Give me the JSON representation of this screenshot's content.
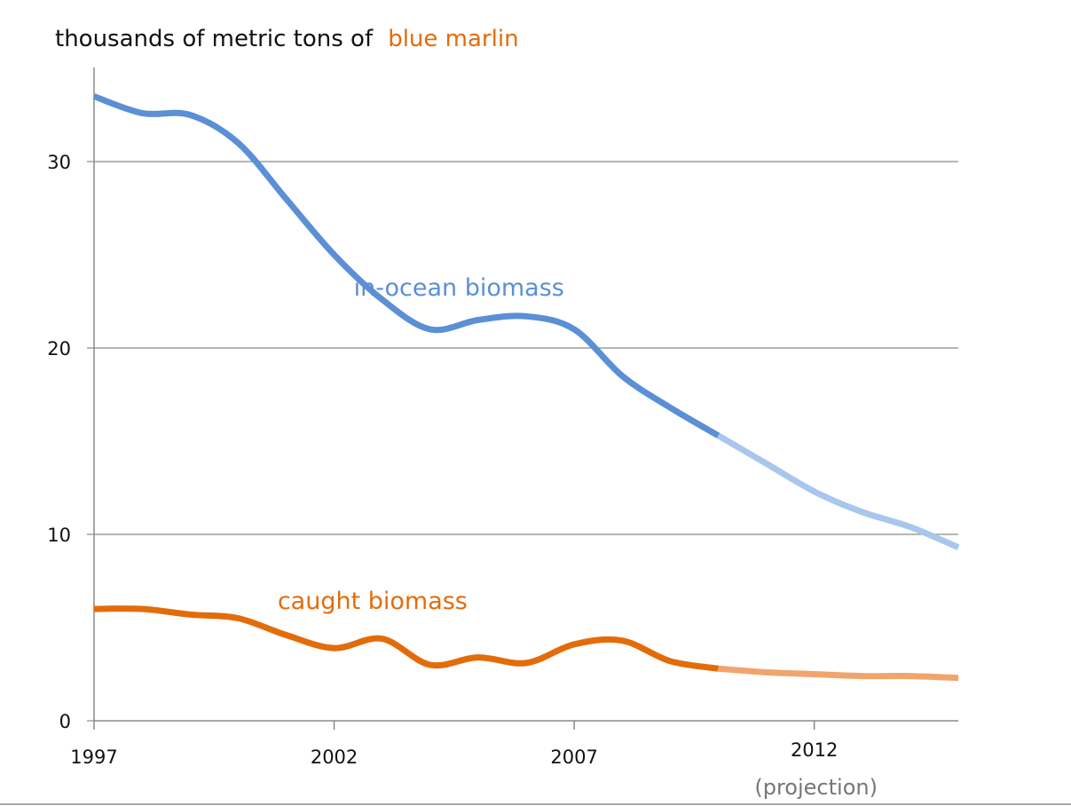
{
  "chart_data": {
    "type": "line",
    "title_prefix": "thousands of metric tons of",
    "title_highlight": "blue marlin",
    "xlabel": "",
    "ylabel": "",
    "xlim": [
      1997,
      2015
    ],
    "ylim": [
      0,
      35
    ],
    "grid": true,
    "y_ticks": [
      {
        "value": 0,
        "label": "0"
      },
      {
        "value": 10,
        "label": "10"
      },
      {
        "value": 20,
        "label": "20"
      },
      {
        "value": 30,
        "label": "30"
      }
    ],
    "x_ticks": [
      {
        "value": 1997,
        "label": "1997",
        "projection": false
      },
      {
        "value": 2002,
        "label": "2002",
        "projection": false
      },
      {
        "value": 2007,
        "label": "2007",
        "projection": false
      },
      {
        "value": 2012,
        "label": "2012",
        "projection": true
      }
    ],
    "projection_note": "(projection)",
    "projection_start": 2010,
    "series": [
      {
        "name": "in-ocean biomass",
        "color": "#5b8fd6",
        "projection_color": "#a9c6ec",
        "label_anchor": {
          "x": 2004.6,
          "y": 22.8
        },
        "points": [
          [
            1997,
            33.5
          ],
          [
            1998,
            32.6
          ],
          [
            1999,
            32.5
          ],
          [
            2000,
            31.0
          ],
          [
            2001,
            28.0
          ],
          [
            2002,
            25.0
          ],
          [
            2003,
            22.6
          ],
          [
            2004,
            21.0
          ],
          [
            2005,
            21.5
          ],
          [
            2006,
            21.7
          ],
          [
            2007,
            21.0
          ],
          [
            2008,
            18.5
          ],
          [
            2009,
            16.8
          ],
          [
            2010,
            15.3
          ],
          [
            2011,
            13.8
          ],
          [
            2012,
            12.3
          ],
          [
            2013,
            11.2
          ],
          [
            2014,
            10.4
          ],
          [
            2015,
            9.3
          ]
        ]
      },
      {
        "name": "caught biomass",
        "color": "#e36c0a",
        "projection_color": "#f2a46e",
        "label_anchor": {
          "x": 2002.8,
          "y": 6.0
        },
        "points": [
          [
            1997,
            6.0
          ],
          [
            1998,
            6.0
          ],
          [
            1999,
            5.7
          ],
          [
            2000,
            5.5
          ],
          [
            2001,
            4.6
          ],
          [
            2002,
            3.9
          ],
          [
            2003,
            4.4
          ],
          [
            2004,
            3.0
          ],
          [
            2005,
            3.4
          ],
          [
            2006,
            3.1
          ],
          [
            2007,
            4.1
          ],
          [
            2008,
            4.3
          ],
          [
            2009,
            3.2
          ],
          [
            2010,
            2.8
          ],
          [
            2011,
            2.6
          ],
          [
            2012,
            2.5
          ],
          [
            2013,
            2.4
          ],
          [
            2014,
            2.4
          ],
          [
            2015,
            2.3
          ]
        ]
      }
    ]
  },
  "colors": {
    "axis": "#8a8a8a",
    "grid": "#8a8a8a",
    "title_highlight": "#e36c0a",
    "projection_tick": "#777777"
  }
}
